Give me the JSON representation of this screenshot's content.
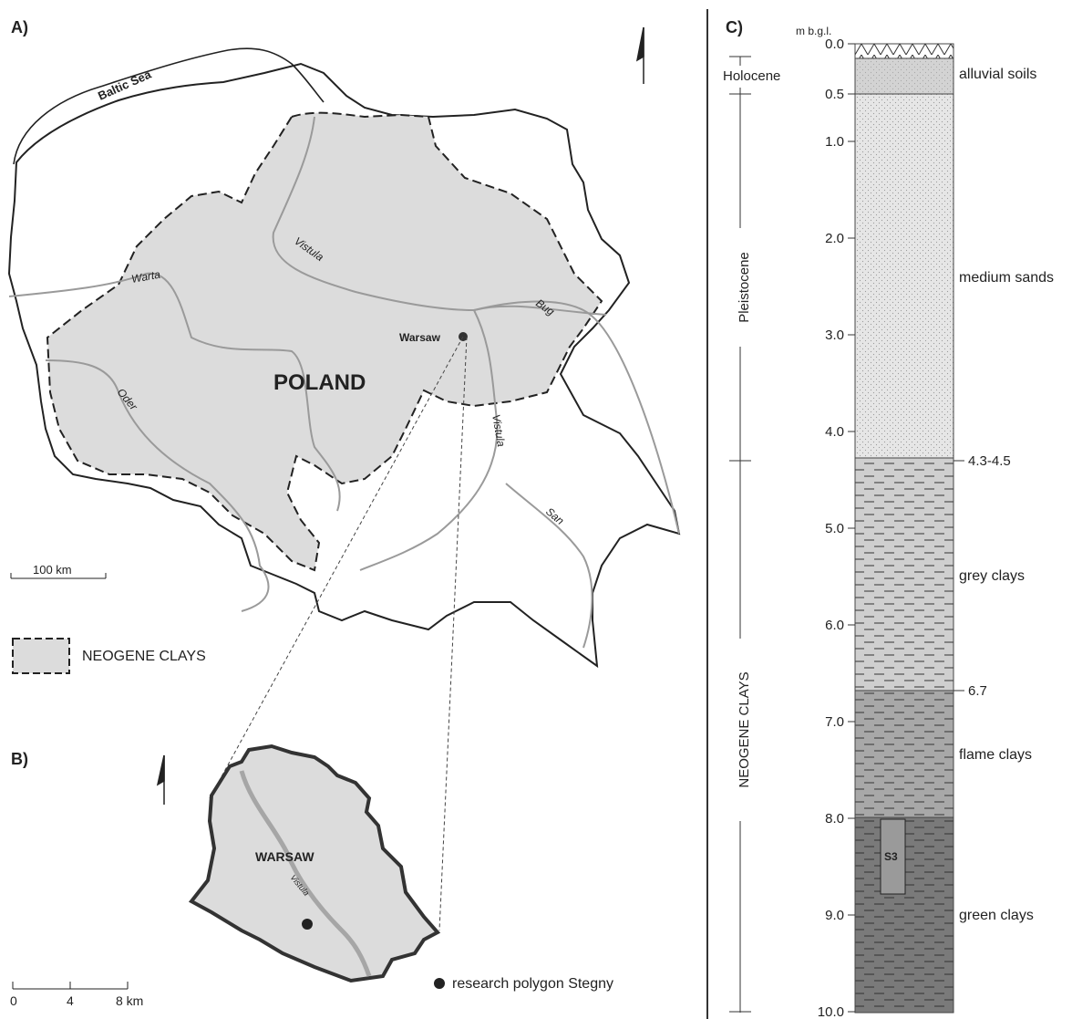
{
  "panel_a": {
    "label": "A)",
    "country": "POLAND",
    "sea": "Baltic Sea",
    "city": "Warsaw",
    "rivers": {
      "vistula_north": "Vistula",
      "warta": "Warta",
      "oder": "Oder",
      "bug": "Bug",
      "vistula_south": "Vistula",
      "san": "San"
    },
    "scale": "100 km",
    "legend": "NEOGENE CLAYS"
  },
  "panel_b": {
    "label": "B)",
    "city": "WARSAW",
    "river": "Vistula",
    "scale_ticks": [
      "0",
      "4",
      "8 km"
    ],
    "legend": "research polygon Stegny"
  },
  "panel_c": {
    "label": "C)",
    "unit": "m b.g.l.",
    "depth_ticks": [
      "0.0",
      "0.5",
      "1.0",
      "2.0",
      "3.0",
      "4.0",
      "5.0",
      "6.0",
      "7.0",
      "8.0",
      "9.0",
      "10.0"
    ],
    "epochs": [
      "Holocene",
      "Pleistocene",
      "NEOGENE CLAYS"
    ],
    "layers": [
      "alluvial soils",
      "medium sands",
      "grey clays",
      "flame clays",
      "green clays"
    ],
    "boundaries": [
      "4.3-4.5",
      "6.7"
    ],
    "sample": "S3"
  },
  "colors": {
    "clay_area": "#dcdcdc",
    "outline": "#222222",
    "river": "#9a9a9a",
    "green_clays": "#7a7a7a",
    "flame_clays": "#a8a8a8",
    "grey_clays": "#cfcfcf",
    "sands": "#e6e6e6"
  }
}
